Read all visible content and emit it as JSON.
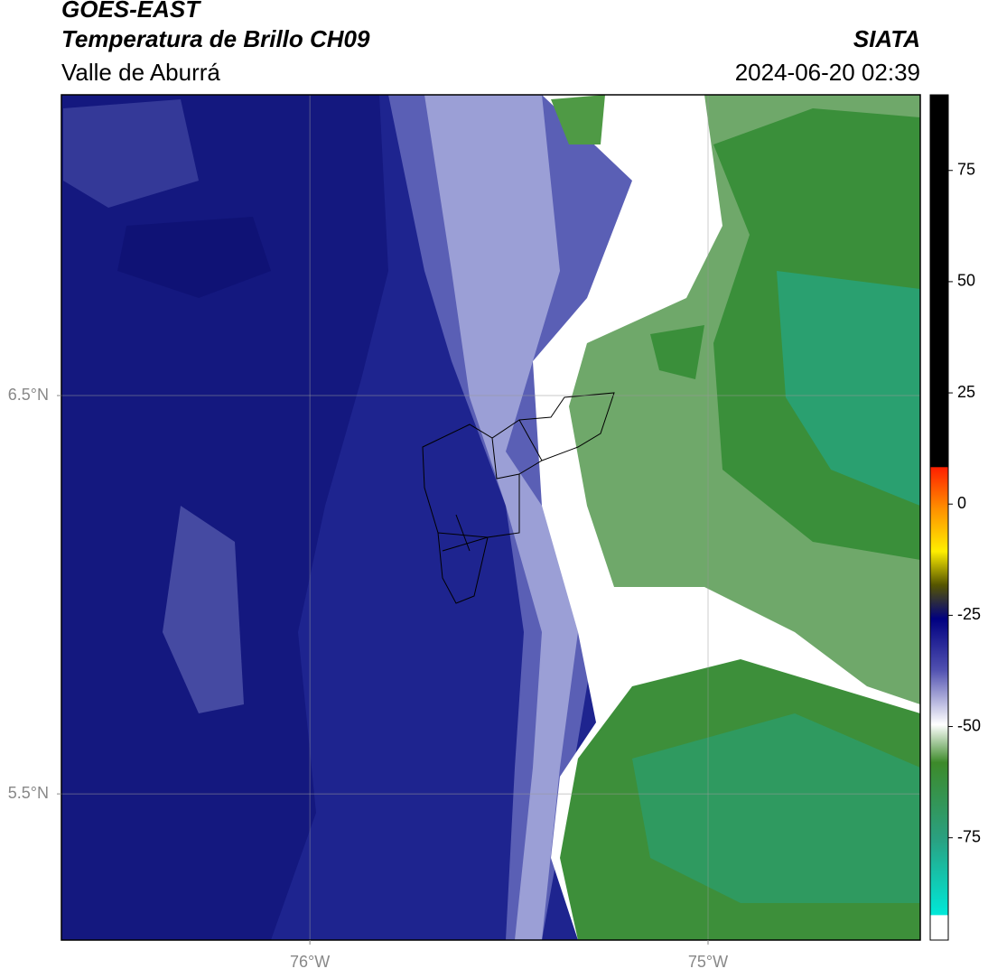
{
  "header": {
    "title": "GOES-EAST",
    "subtitle": "Temperatura de Brillo CH09",
    "region": "Valle de Aburrá",
    "source": "SIATA",
    "datetime": "2024-06-20 02:39"
  },
  "chart_data": {
    "type": "map",
    "xlim": [
      -76.624,
      -74.467
    ],
    "ylim": [
      5.133,
      7.255
    ],
    "xticks": [
      {
        "value": -76,
        "label": "76°W"
      },
      {
        "value": -75,
        "label": "75°W"
      }
    ],
    "yticks": [
      {
        "value": 6.5,
        "label": "6.5°N"
      },
      {
        "value": 5.5,
        "label": "5.5°N"
      }
    ],
    "grid": true,
    "colorbar": {
      "clim": [
        -98,
        92
      ],
      "ticks": [
        75,
        50,
        25,
        0,
        -25,
        -50,
        -75
      ]
    }
  }
}
